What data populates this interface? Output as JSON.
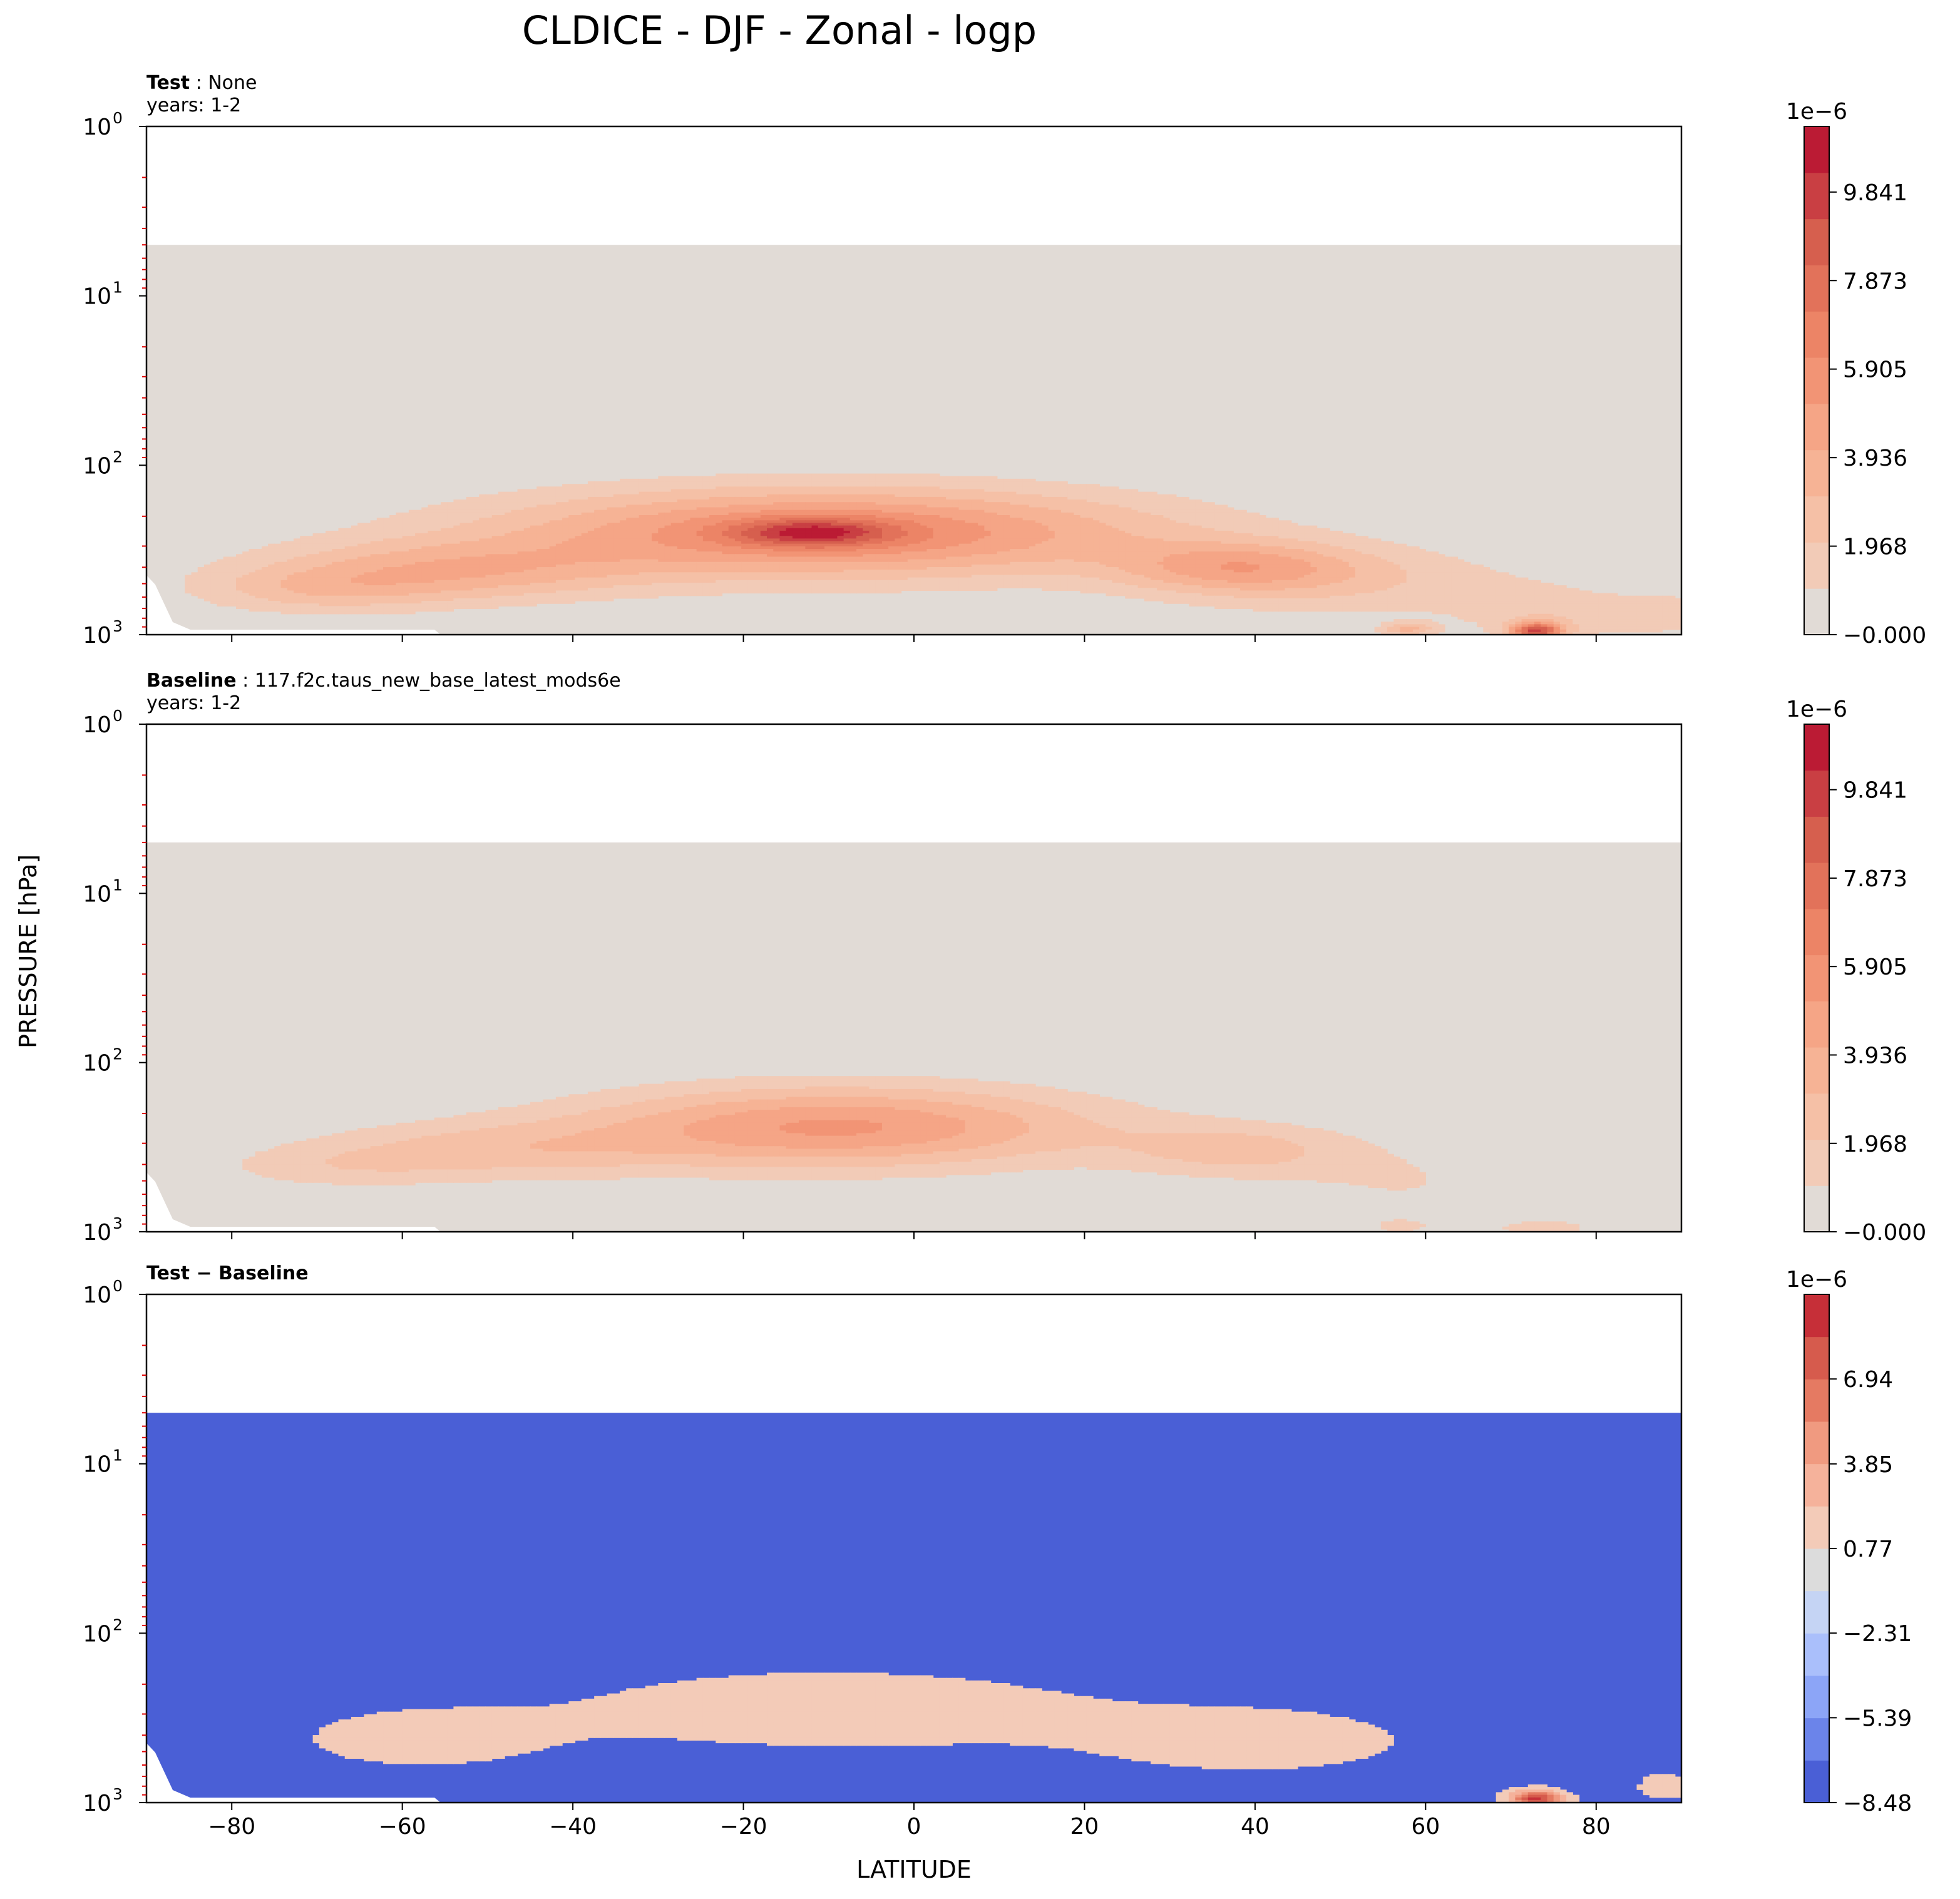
{
  "figure": {
    "title": "CLDICE - DJF - Zonal - logp",
    "ylabel": "PRESSURE [hPa]",
    "xlabel": "LATITUDE"
  },
  "chart_data": [
    {
      "type": "heatmap",
      "panel": "test",
      "label_bold": "Test",
      "label_sep": " : ",
      "label_value": "None",
      "years": "years: 1-2",
      "x_ticks": [
        -80,
        -60,
        -40,
        -20,
        0,
        20,
        40,
        60,
        80
      ],
      "x_range": [
        -90,
        90
      ],
      "y_ticks": [
        1,
        10,
        100,
        1000
      ],
      "y_tick_labels": [
        {
          "base": "10",
          "exp": "0"
        },
        {
          "base": "10",
          "exp": "1"
        },
        {
          "base": "10",
          "exp": "2"
        },
        {
          "base": "10",
          "exp": "3"
        }
      ],
      "y_range": [
        1,
        1000
      ],
      "y_scale": "log",
      "y_inverted": true,
      "data_top_pressure": 5,
      "colorbar": {
        "multiplier": "1e−6",
        "ticks": [
          "9.841",
          "7.873",
          "5.905",
          "3.936",
          "1.968",
          "−0.000"
        ],
        "tick_values": [
          9.841,
          7.873,
          5.905,
          3.936,
          1.968,
          0.0
        ],
        "range": [
          0.0,
          11.3
        ],
        "levels": 11,
        "palette": [
          "#e1dbd6",
          "#f2cbb7",
          "#f5c0a6",
          "#f6b395",
          "#f5a586",
          "#f29475",
          "#ec8466",
          "#e2725a",
          "#d65f4e",
          "#c93f43",
          "#bb1b34"
        ]
      },
      "blobs": [
        {
          "lat": -10,
          "p": 250,
          "dlat": 38,
          "dp": 0.26,
          "amp": 6.5
        },
        {
          "lat": -12,
          "p": 250,
          "dlat": 9,
          "dp": 0.08,
          "amp": 4.7
        },
        {
          "lat": -55,
          "p": 420,
          "dlat": 22,
          "dp": 0.18,
          "amp": 3.3
        },
        {
          "lat": -70,
          "p": 550,
          "dlat": 15,
          "dp": 0.14,
          "amp": 2.0
        },
        {
          "lat": 38,
          "p": 400,
          "dlat": 14,
          "dp": 0.15,
          "amp": 3.6
        },
        {
          "lat": 52,
          "p": 500,
          "dlat": 22,
          "dp": 0.22,
          "amp": 1.7
        },
        {
          "lat": 75,
          "p": 780,
          "dlat": 10,
          "dp": 0.17,
          "amp": 1.6
        },
        {
          "lat": 73,
          "p": 950,
          "dlat": 3,
          "dp": 0.05,
          "amp": 8.5
        },
        {
          "lat": 58,
          "p": 930,
          "dlat": 3,
          "dp": 0.04,
          "amp": 3.0
        },
        {
          "lat": 88,
          "p": 750,
          "dlat": 6,
          "dp": 0.12,
          "amp": 1.6
        }
      ]
    },
    {
      "type": "heatmap",
      "panel": "baseline",
      "label_bold": "Baseline",
      "label_sep": " : ",
      "label_value": "117.f2c.taus_new_base_latest_mods6e",
      "years": "years: 1-2",
      "x_ticks": [
        -80,
        -60,
        -40,
        -20,
        0,
        20,
        40,
        60,
        80
      ],
      "x_range": [
        -90,
        90
      ],
      "y_ticks": [
        1,
        10,
        100,
        1000
      ],
      "y_tick_labels": [
        {
          "base": "10",
          "exp": "0"
        },
        {
          "base": "10",
          "exp": "1"
        },
        {
          "base": "10",
          "exp": "2"
        },
        {
          "base": "10",
          "exp": "3"
        }
      ],
      "y_range": [
        1,
        1000
      ],
      "y_scale": "log",
      "y_inverted": true,
      "data_top_pressure": 5,
      "colorbar": {
        "multiplier": "1e−6",
        "ticks": [
          "9.841",
          "7.873",
          "5.905",
          "3.936",
          "1.968",
          "−0.000"
        ],
        "tick_values": [
          9.841,
          7.873,
          5.905,
          3.936,
          1.968,
          0.0
        ],
        "range": [
          0.0,
          11.3
        ],
        "levels": 11,
        "palette": [
          "#e1dbd6",
          "#f2cbb7",
          "#f5c0a6",
          "#f6b395",
          "#f5a586",
          "#f29475",
          "#ec8466",
          "#e2725a",
          "#d65f4e",
          "#c93f43",
          "#bb1b34"
        ]
      },
      "blobs": [
        {
          "lat": -9,
          "p": 240,
          "dlat": 30,
          "dp": 0.24,
          "amp": 5.3
        },
        {
          "lat": -50,
          "p": 330,
          "dlat": 22,
          "dp": 0.17,
          "amp": 2.2
        },
        {
          "lat": -68,
          "p": 420,
          "dlat": 15,
          "dp": 0.13,
          "amp": 1.2
        },
        {
          "lat": 38,
          "p": 330,
          "dlat": 14,
          "dp": 0.16,
          "amp": 2.3
        },
        {
          "lat": 58,
          "p": 520,
          "dlat": 15,
          "dp": 0.24,
          "amp": 1.0
        },
        {
          "lat": 74,
          "p": 950,
          "dlat": 6,
          "dp": 0.05,
          "amp": 1.6
        },
        {
          "lat": 57,
          "p": 930,
          "dlat": 3,
          "dp": 0.04,
          "amp": 1.5
        }
      ]
    },
    {
      "type": "heatmap",
      "panel": "difference",
      "label_bold": "Test − Baseline",
      "label_sep": "",
      "label_value": "",
      "years": "",
      "x_ticks": [
        -80,
        -60,
        -40,
        -20,
        0,
        20,
        40,
        60,
        80
      ],
      "x_range": [
        -90,
        90
      ],
      "y_ticks": [
        1,
        10,
        100,
        1000
      ],
      "y_tick_labels": [
        {
          "base": "10",
          "exp": "0"
        },
        {
          "base": "10",
          "exp": "1"
        },
        {
          "base": "10",
          "exp": "2"
        },
        {
          "base": "10",
          "exp": "3"
        }
      ],
      "y_range": [
        1,
        1000
      ],
      "y_scale": "log",
      "y_inverted": true,
      "data_top_pressure": 5,
      "colorbar": {
        "multiplier": "1e−6",
        "ticks": [
          "6.94",
          "3.85",
          "0.77",
          "−2.31",
          "−5.39",
          "−8.48"
        ],
        "tick_values": [
          6.94,
          3.85,
          0.77,
          -2.31,
          -5.39,
          -8.48
        ],
        "range": [
          -8.48,
          10.02
        ],
        "levels": 12,
        "palette": [
          "#4a5fd6",
          "#6b84ea",
          "#8ca5f7",
          "#aabffb",
          "#c5d4f4",
          "#dcdcdc",
          "#f3cbb8",
          "#f5b29b",
          "#f09a80",
          "#e57a62",
          "#d65b4d",
          "#c62f38"
        ]
      },
      "blobs": [
        {
          "lat": -10,
          "p": 280,
          "dlat": 30,
          "dp": 0.24,
          "amp": 1.7
        },
        {
          "lat": -58,
          "p": 420,
          "dlat": 18,
          "dp": 0.22,
          "amp": 1.2
        },
        {
          "lat": 40,
          "p": 430,
          "dlat": 24,
          "dp": 0.25,
          "amp": 1.2
        },
        {
          "lat": 73,
          "p": 950,
          "dlat": 3,
          "dp": 0.05,
          "amp": 9.0
        },
        {
          "lat": 88,
          "p": 800,
          "dlat": 4,
          "dp": 0.1,
          "amp": 1.3
        }
      ]
    }
  ]
}
